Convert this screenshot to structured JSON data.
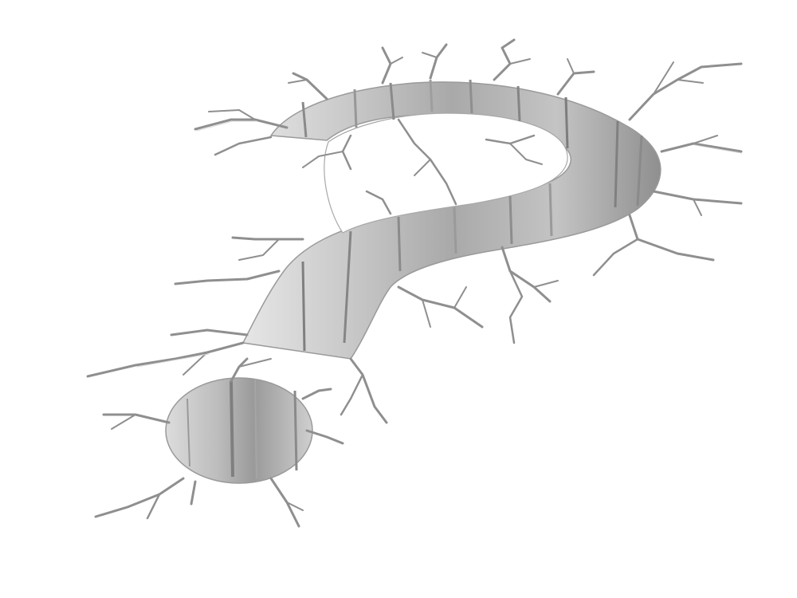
{
  "scene": {
    "subject": "cracked-question-mark-hole",
    "icons": [
      "question-mark-icon",
      "crack-icon"
    ],
    "colors": {
      "background": "#ffffff",
      "wall_light": "#e2e2e2",
      "wall_mid": "#b8b8b8",
      "wall_dark": "#8c8c8c",
      "crack": "#8f8f8f"
    }
  }
}
